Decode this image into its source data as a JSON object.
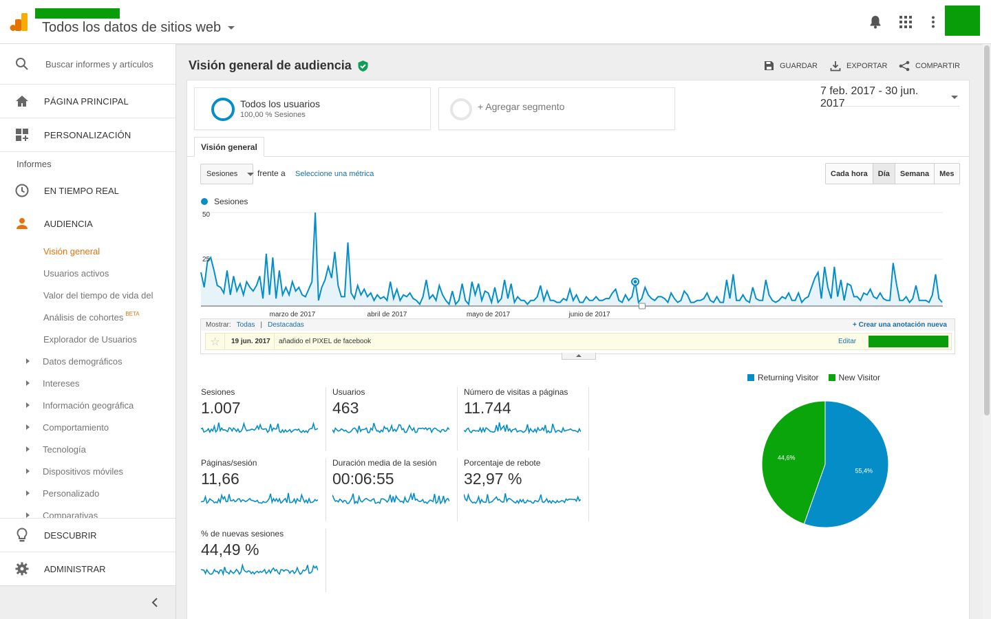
{
  "header": {
    "property_title": "Todos los datos de sitios web"
  },
  "sidebar": {
    "search_placeholder": "Buscar informes y artículos",
    "home": "PÁGINA PRINCIPAL",
    "customization": "PERSONALIZACIÓN",
    "reports_heading": "Informes",
    "realtime": "EN TIEMPO REAL",
    "audience": "AUDIENCIA",
    "audience_items": [
      "Visión general",
      "Usuarios activos",
      "Valor del tiempo de vida del",
      "Análisis de cohortes",
      "Explorador de Usuarios"
    ],
    "beta_label": "BETA",
    "expandable_items": [
      "Datos demográficos",
      "Intereses",
      "Información geográfica",
      "Comportamiento",
      "Tecnología",
      "Dispositivos móviles",
      "Personalizado",
      "Comparativas"
    ],
    "discover": "DESCUBRIR",
    "admin": "ADMINISTRAR"
  },
  "page": {
    "title": "Visión general de audiencia",
    "actions": {
      "save": "GUARDAR",
      "export": "EXPORTAR",
      "share": "COMPARTIR"
    },
    "segment": {
      "name": "Todos los usuarios",
      "sub": "100,00 % Sesiones",
      "add": "+ Agregar segmento"
    },
    "date_range": "7 feb. 2017 - 30 jun. 2017",
    "tab": "Visión general",
    "metric_select": "Sesiones",
    "vs_text": "frente a",
    "vs_link": "Seleccione una métrica",
    "granularity": [
      "Cada hora",
      "Día",
      "Semana",
      "Mes"
    ],
    "granularity_active": "Día"
  },
  "chart_data": [
    {
      "type": "line",
      "series": [
        {
          "name": "Sesiones",
          "values": [
            18,
            10,
            24,
            26,
            19,
            11,
            10,
            7,
            19,
            6,
            16,
            8,
            12,
            6,
            13,
            10,
            8,
            11,
            16,
            4,
            28,
            6,
            26,
            4,
            19,
            6,
            10,
            6,
            13,
            8,
            10,
            6,
            5,
            9,
            13,
            50,
            3,
            10,
            14,
            21,
            15,
            29,
            11,
            5,
            5,
            34,
            7,
            4,
            11,
            6,
            9,
            5,
            7,
            3,
            6,
            4,
            5,
            3,
            13,
            4,
            9,
            3,
            6,
            5,
            7,
            4,
            3,
            1,
            5,
            14,
            4,
            6,
            3,
            11,
            6,
            3,
            1,
            8,
            1,
            3,
            12,
            3,
            1,
            13,
            6,
            12,
            3,
            8,
            7,
            2,
            10,
            2,
            4,
            14,
            4,
            12,
            2,
            5,
            3,
            3,
            1,
            3,
            3,
            5,
            11,
            3,
            8,
            3,
            3,
            2,
            2,
            4,
            3,
            9,
            3,
            6,
            2,
            2,
            5,
            3,
            3,
            5,
            3,
            3,
            4,
            4,
            7,
            9,
            3,
            2,
            6,
            3,
            5,
            13,
            2,
            4,
            10,
            6,
            4,
            3,
            5,
            5,
            4,
            2,
            7,
            4,
            2,
            3,
            8,
            6,
            2,
            2,
            3,
            3,
            4,
            7,
            3,
            2,
            5,
            2,
            2,
            14,
            4,
            17,
            3,
            3,
            6,
            3,
            2,
            10,
            4,
            3,
            3,
            14,
            6,
            3,
            2,
            3,
            5,
            4,
            7,
            3,
            3,
            7,
            2,
            4,
            5,
            10,
            15,
            18,
            4,
            21,
            10,
            4,
            21,
            5,
            14,
            3,
            12,
            11,
            5,
            5,
            3,
            7,
            6,
            9,
            5,
            4,
            7,
            4,
            3,
            3,
            23,
            12,
            3,
            3,
            5,
            2,
            4,
            11,
            3,
            3,
            3,
            2,
            6,
            17,
            4,
            2
          ]
        }
      ],
      "ylim": [
        0,
        50
      ],
      "y_ticks": [
        "50",
        "25"
      ],
      "x_labels": [
        "marzo de 2017",
        "abril de 2017",
        "mayo de 2017",
        "junio de 2017"
      ]
    },
    {
      "type": "pie",
      "categories": [
        "Returning Visitor",
        "New Visitor"
      ],
      "values": [
        55.4,
        44.6
      ],
      "value_labels": [
        "55,4%",
        "44,6%"
      ],
      "colors": [
        "#058dc7",
        "#0aa50a"
      ],
      "legend": "top"
    }
  ],
  "annotations": {
    "show_label": "Mostrar:",
    "all": "Todas",
    "sep": "|",
    "starred": "Destacadas",
    "create": "+ Crear una anotación nueva",
    "date": "19 jun. 2017",
    "text": "añadido el PIXEL de facebook",
    "edit": "Editar"
  },
  "scorecards": [
    {
      "title": "Sesiones",
      "value": "1.007"
    },
    {
      "title": "Usuarios",
      "value": "463"
    },
    {
      "title": "Número de visitas a páginas",
      "value": "11.744"
    },
    {
      "title": "Páginas/sesión",
      "value": "11,66"
    },
    {
      "title": "Duración media de la sesión",
      "value": "00:06:55"
    },
    {
      "title": "Porcentaje de rebote",
      "value": "32,97 %"
    },
    {
      "title": "% de nuevas sesiones",
      "value": "44,49 %"
    }
  ],
  "colors": {
    "accent": "#058dc7",
    "active_nav": "#e8710a",
    "green": "#0aa50a"
  }
}
